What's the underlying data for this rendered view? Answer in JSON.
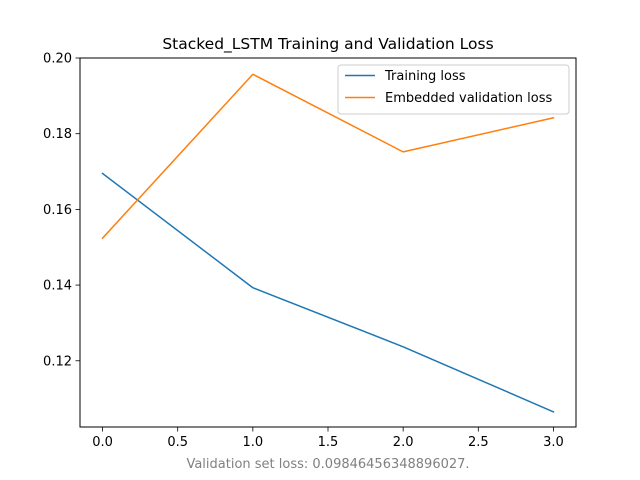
{
  "chart_data": {
    "type": "line",
    "title": "Stacked_LSTM Training and Validation Loss",
    "xlabel": "",
    "ylabel": "",
    "x": [
      0,
      1,
      2,
      3
    ],
    "xlim": [
      -0.15,
      3.15
    ],
    "ylim": [
      0.1025,
      0.2
    ],
    "x_ticks": [
      0,
      0.5,
      1,
      1.5,
      2,
      2.5,
      3
    ],
    "x_tick_labels": [
      "0.0",
      "0.5",
      "1.0",
      "1.5",
      "2.0",
      "2.5",
      "3.0"
    ],
    "y_ticks": [
      0.12,
      0.14,
      0.16,
      0.18,
      0.2
    ],
    "y_tick_labels": [
      "0.12",
      "0.14",
      "0.16",
      "0.18",
      "0.20"
    ],
    "series": [
      {
        "name": "Training loss",
        "color": "#1f77b4",
        "values": [
          0.1695,
          0.1393,
          0.1237,
          0.1065
        ]
      },
      {
        "name": "Embedded validation loss",
        "color": "#ff7f0e",
        "values": [
          0.1524,
          0.1957,
          0.1752,
          0.1842
        ]
      }
    ],
    "legend_position": "top-right",
    "grid": false,
    "footnote": "Validation set loss: 0.09846456348896027."
  }
}
